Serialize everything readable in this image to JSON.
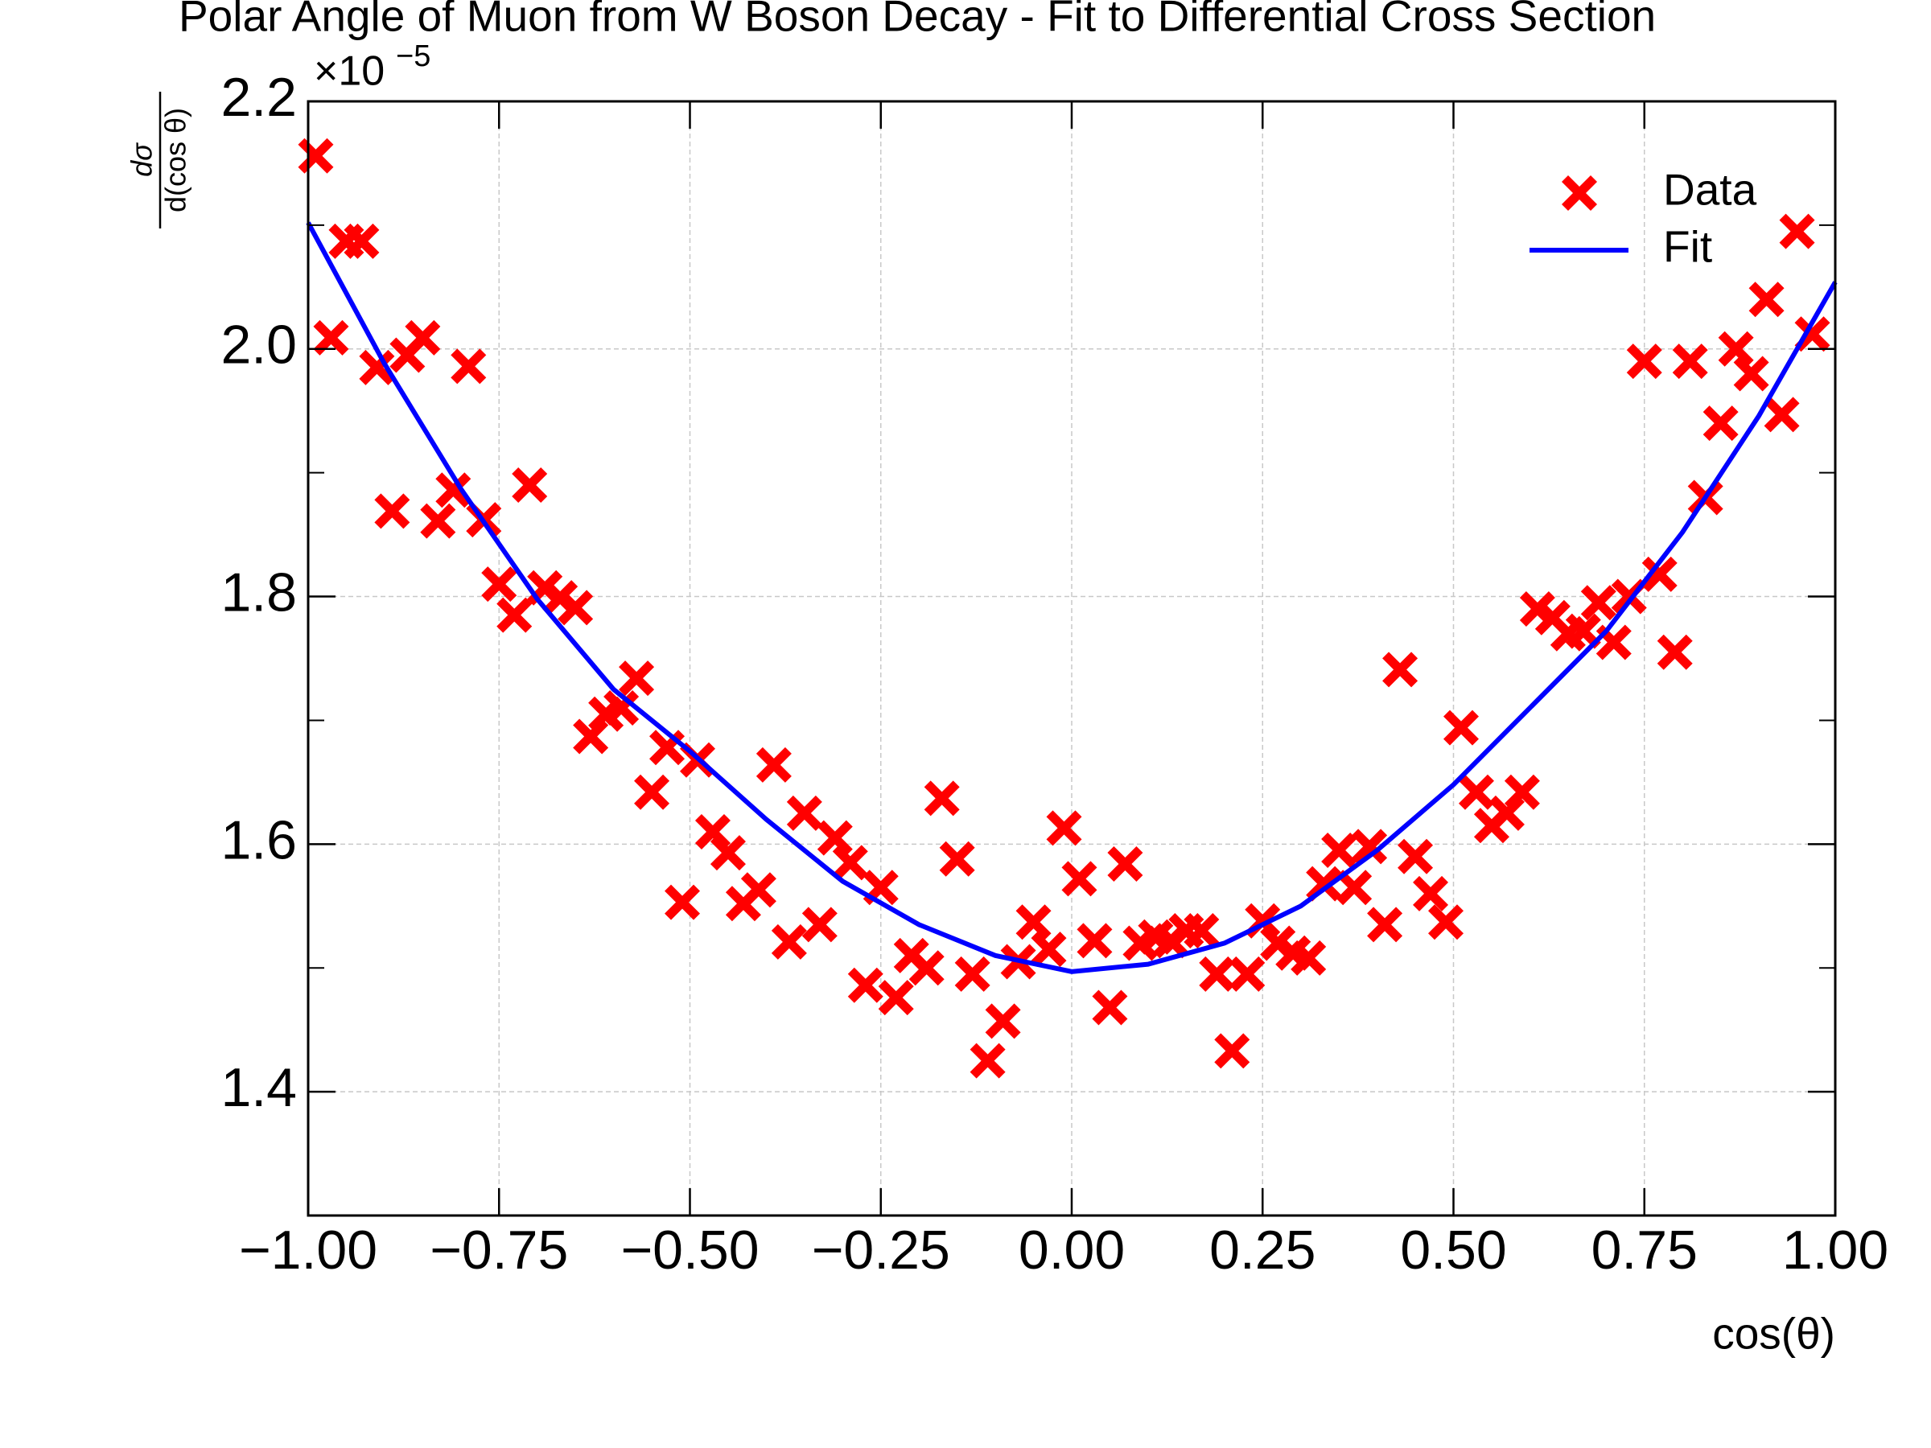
{
  "chart_data": {
    "type": "scatter",
    "title": "Polar Angle of Muon from W Boson Decay - Fit to Differential Cross Section",
    "xlabel": "cos(θ)",
    "ylabel_numerator": "dσ",
    "ylabel_denominator": "d(cos θ)",
    "y_multiplier": "×10",
    "y_multiplier_exponent": "−5",
    "xlim": [
      -1,
      1
    ],
    "ylim": [
      1.3,
      2.2
    ],
    "xticks": [
      {
        "value": -1,
        "label": "−1.00"
      },
      {
        "value": -0.75,
        "label": "−0.75"
      },
      {
        "value": -0.5,
        "label": "−0.50"
      },
      {
        "value": -0.25,
        "label": "−0.25"
      },
      {
        "value": 0,
        "label": "0.00"
      },
      {
        "value": 0.25,
        "label": "0.25"
      },
      {
        "value": 0.5,
        "label": "0.50"
      },
      {
        "value": 0.75,
        "label": "0.75"
      },
      {
        "value": 1,
        "label": "1.00"
      }
    ],
    "yticks": [
      1.4,
      1.6,
      1.8,
      {
        "value": 2,
        "label": "2.0"
      },
      2.2
    ],
    "yminorticks": [
      1.3,
      1.5,
      1.7,
      1.9,
      2.1
    ],
    "grid": true,
    "legend": "upper right",
    "series": [
      {
        "name": "Data",
        "type": "scatter",
        "color": "#ff0000",
        "x": [
          -0.99,
          -0.97,
          -0.95,
          -0.93,
          -0.91,
          -0.89,
          -0.87,
          -0.85,
          -0.83,
          -0.81,
          -0.79,
          -0.77,
          -0.75,
          -0.73,
          -0.71,
          -0.69,
          -0.67,
          -0.65,
          -0.63,
          -0.61,
          -0.59,
          -0.57,
          -0.55,
          -0.53,
          -0.51,
          -0.49,
          -0.47,
          -0.45,
          -0.43,
          -0.41,
          -0.39,
          -0.37,
          -0.35,
          -0.33,
          -0.31,
          -0.29,
          -0.27,
          -0.25,
          -0.23,
          -0.21,
          -0.19,
          -0.17,
          -0.15,
          -0.13,
          -0.11,
          -0.09,
          -0.07,
          -0.05,
          -0.03,
          -0.01,
          0.01,
          0.03,
          0.05,
          0.07,
          0.09,
          0.11,
          0.13,
          0.15,
          0.17,
          0.19,
          0.21,
          0.23,
          0.25,
          0.27,
          0.29,
          0.31,
          0.33,
          0.35,
          0.37,
          0.39,
          0.41,
          0.43,
          0.45,
          0.47,
          0.49,
          0.51,
          0.53,
          0.55,
          0.57,
          0.59,
          0.61,
          0.63,
          0.65,
          0.67,
          0.69,
          0.71,
          0.73,
          0.75,
          0.77,
          0.79,
          0.81,
          0.83,
          0.85,
          0.87,
          0.89,
          0.91,
          0.93,
          0.95,
          0.97
        ],
        "values": [
          2.156,
          2.009,
          2.087,
          2.087,
          1.985,
          1.869,
          1.995,
          2.009,
          1.861,
          1.886,
          1.986,
          1.862,
          1.81,
          1.785,
          1.89,
          1.807,
          1.799,
          1.791,
          1.687,
          1.705,
          1.71,
          1.734,
          1.642,
          1.678,
          1.553,
          1.668,
          1.61,
          1.593,
          1.552,
          1.563,
          1.664,
          1.521,
          1.625,
          1.535,
          1.605,
          1.585,
          1.486,
          1.565,
          1.476,
          1.51,
          1.5,
          1.637,
          1.588,
          1.495,
          1.425,
          1.457,
          1.505,
          1.537,
          1.515,
          1.613,
          1.572,
          1.522,
          1.468,
          1.584,
          1.52,
          1.525,
          1.522,
          1.53,
          1.53,
          1.495,
          1.433,
          1.495,
          1.538,
          1.52,
          1.512,
          1.508,
          1.568,
          1.595,
          1.565,
          1.598,
          1.535,
          1.741,
          1.59,
          1.56,
          1.537,
          1.694,
          1.642,
          1.615,
          1.625,
          1.642,
          1.79,
          1.783,
          1.77,
          1.772,
          1.795,
          1.763,
          1.8,
          1.99,
          1.818,
          1.755,
          1.99,
          1.88,
          1.94,
          2.0,
          1.98,
          2.04,
          1.947,
          2.095,
          2.012
        ]
      },
      {
        "name": "Fit",
        "type": "line",
        "color": "#0000ff",
        "x": [
          -1,
          -0.9,
          -0.8,
          -0.7,
          -0.6,
          -0.5,
          -0.4,
          -0.3,
          -0.2,
          -0.1,
          0,
          0.1,
          0.2,
          0.3,
          0.4,
          0.5,
          0.6,
          0.7,
          0.8,
          0.9,
          1
        ],
        "values": [
          2.102,
          1.988,
          1.887,
          1.798,
          1.725,
          1.675,
          1.62,
          1.57,
          1.535,
          1.51,
          1.497,
          1.503,
          1.52,
          1.55,
          1.595,
          1.648,
          1.71,
          1.772,
          1.852,
          1.946,
          2.054
        ]
      }
    ]
  }
}
